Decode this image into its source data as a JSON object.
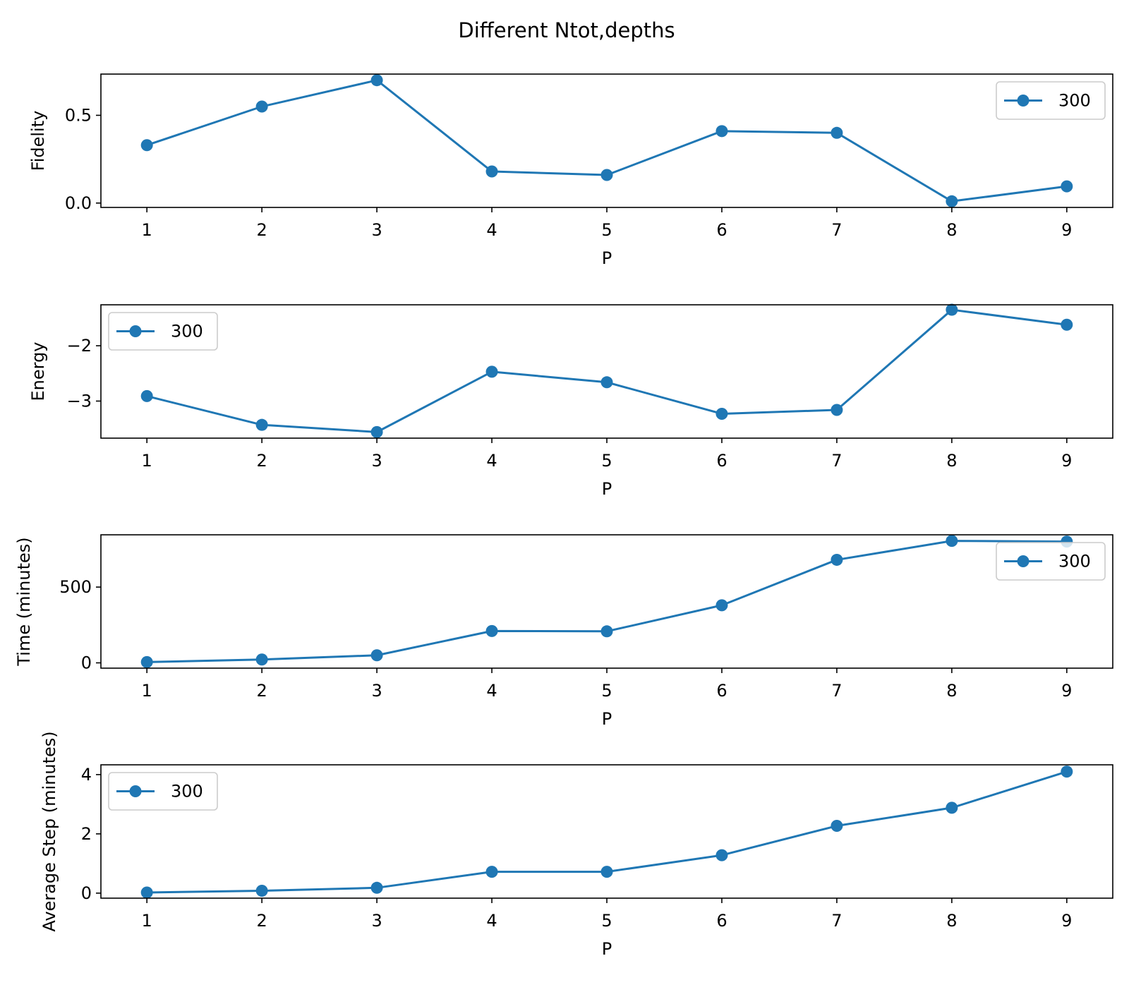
{
  "chart_data": {
    "title": "Different Ntot,depths",
    "colors": {
      "series": "#1f77b4"
    },
    "panels": [
      {
        "type": "line",
        "ylabel": "Fidelity",
        "xlabel": "P",
        "x": [
          1,
          2,
          3,
          4,
          5,
          6,
          7,
          8,
          9
        ],
        "xticks": [
          "1",
          "2",
          "3",
          "4",
          "5",
          "6",
          "7",
          "8",
          "9"
        ],
        "xlim": [
          0.6,
          9.4
        ],
        "ylim": [
          -0.025,
          0.735
        ],
        "yticks": [
          {
            "v": 0.0,
            "t": "0.0"
          },
          {
            "v": 0.5,
            "t": "0.5"
          }
        ],
        "legend_position": "upper right",
        "series": [
          {
            "name": "300",
            "values": [
              0.33,
              0.55,
              0.7,
              0.18,
              0.16,
              0.41,
              0.4,
              0.01,
              0.095
            ]
          }
        ]
      },
      {
        "type": "line",
        "ylabel": "Energy",
        "xlabel": "P",
        "x": [
          1,
          2,
          3,
          4,
          5,
          6,
          7,
          8,
          9
        ],
        "xticks": [
          "1",
          "2",
          "3",
          "4",
          "5",
          "6",
          "7",
          "8",
          "9"
        ],
        "xlim": [
          0.6,
          9.4
        ],
        "ylim": [
          -3.67,
          -1.26
        ],
        "yticks": [
          {
            "v": -3,
            "t": "−3"
          },
          {
            "v": -2,
            "t": "−2"
          }
        ],
        "legend_position": "upper left",
        "series": [
          {
            "name": "300",
            "values": [
              -2.91,
              -3.43,
              -3.56,
              -2.47,
              -2.66,
              -3.23,
              -3.16,
              -1.35,
              -1.62
            ]
          }
        ]
      },
      {
        "type": "line",
        "ylabel": "Time (minutes)",
        "xlabel": "P",
        "x": [
          1,
          2,
          3,
          4,
          5,
          6,
          7,
          8,
          9
        ],
        "xticks": [
          "1",
          "2",
          "3",
          "4",
          "5",
          "6",
          "7",
          "8",
          "9"
        ],
        "xlim": [
          0.6,
          9.4
        ],
        "ylim": [
          -35,
          845
        ],
        "yticks": [
          {
            "v": 0,
            "t": "0"
          },
          {
            "v": 500,
            "t": "500"
          }
        ],
        "legend_position": "upper right",
        "series": [
          {
            "name": "300",
            "values": [
              5,
              22,
              50,
              210,
              208,
              380,
              680,
              805,
              800
            ]
          }
        ]
      },
      {
        "type": "line",
        "ylabel": "Average Step (minutes)",
        "xlabel": "P",
        "x": [
          1,
          2,
          3,
          4,
          5,
          6,
          7,
          8,
          9
        ],
        "xticks": [
          "1",
          "2",
          "3",
          "4",
          "5",
          "6",
          "7",
          "8",
          "9"
        ],
        "xlim": [
          0.6,
          9.4
        ],
        "ylim": [
          -0.17,
          4.33
        ],
        "yticks": [
          {
            "v": 0,
            "t": "0"
          },
          {
            "v": 2,
            "t": "2"
          },
          {
            "v": 4,
            "t": "4"
          }
        ],
        "legend_position": "upper left",
        "series": [
          {
            "name": "300",
            "values": [
              0.02,
              0.08,
              0.18,
              0.72,
              0.72,
              1.28,
              2.27,
              2.88,
              4.1
            ]
          }
        ]
      }
    ]
  }
}
